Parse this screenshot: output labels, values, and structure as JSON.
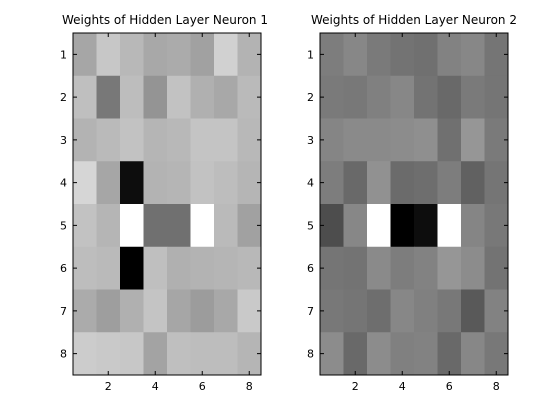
{
  "chart_data": [
    {
      "type": "heatmap",
      "title": "Weights of Hidden Layer Neuron 1",
      "colormap": "gray",
      "xlim": [
        0.5,
        8.5
      ],
      "ylim": [
        0.5,
        8.5
      ],
      "y_reversed": true,
      "x_ticks": [
        2,
        4,
        6,
        8
      ],
      "y_ticks": [
        1,
        2,
        3,
        4,
        5,
        6,
        7,
        8
      ],
      "grid": false,
      "values": [
        [
          0.65,
          0.78,
          0.72,
          0.66,
          0.67,
          0.63,
          0.82,
          0.7
        ],
        [
          0.75,
          0.47,
          0.74,
          0.58,
          0.76,
          0.69,
          0.66,
          0.73
        ],
        [
          0.7,
          0.73,
          0.76,
          0.71,
          0.72,
          0.77,
          0.77,
          0.72
        ],
        [
          0.84,
          0.65,
          0.05,
          0.7,
          0.71,
          0.76,
          0.74,
          0.71
        ],
        [
          0.76,
          0.71,
          1.0,
          0.44,
          0.44,
          1.0,
          0.73,
          0.63
        ],
        [
          0.74,
          0.73,
          0.0,
          0.75,
          0.69,
          0.7,
          0.71,
          0.72
        ],
        [
          0.67,
          0.62,
          0.69,
          0.77,
          0.65,
          0.61,
          0.66,
          0.79
        ],
        [
          0.8,
          0.79,
          0.78,
          0.64,
          0.75,
          0.74,
          0.74,
          0.71
        ]
      ]
    },
    {
      "type": "heatmap",
      "title": "Weights of Hidden Layer Neuron 2",
      "colormap": "gray",
      "xlim": [
        0.5,
        8.5
      ],
      "ylim": [
        0.5,
        8.5
      ],
      "y_reversed": true,
      "x_ticks": [
        2,
        4,
        6,
        8
      ],
      "y_ticks": [
        1,
        2,
        3,
        4,
        5,
        6,
        7,
        8
      ],
      "grid": false,
      "values": [
        [
          0.49,
          0.53,
          0.48,
          0.45,
          0.44,
          0.51,
          0.53,
          0.46
        ],
        [
          0.48,
          0.47,
          0.5,
          0.53,
          0.45,
          0.41,
          0.48,
          0.46
        ],
        [
          0.52,
          0.54,
          0.54,
          0.55,
          0.56,
          0.44,
          0.59,
          0.48
        ],
        [
          0.49,
          0.41,
          0.57,
          0.42,
          0.43,
          0.49,
          0.38,
          0.46
        ],
        [
          0.3,
          0.53,
          1.0,
          0.0,
          0.05,
          1.0,
          0.52,
          0.47
        ],
        [
          0.46,
          0.45,
          0.54,
          0.49,
          0.51,
          0.59,
          0.55,
          0.45
        ],
        [
          0.47,
          0.46,
          0.43,
          0.53,
          0.5,
          0.47,
          0.35,
          0.51
        ],
        [
          0.55,
          0.41,
          0.55,
          0.5,
          0.51,
          0.41,
          0.53,
          0.47
        ]
      ]
    }
  ]
}
